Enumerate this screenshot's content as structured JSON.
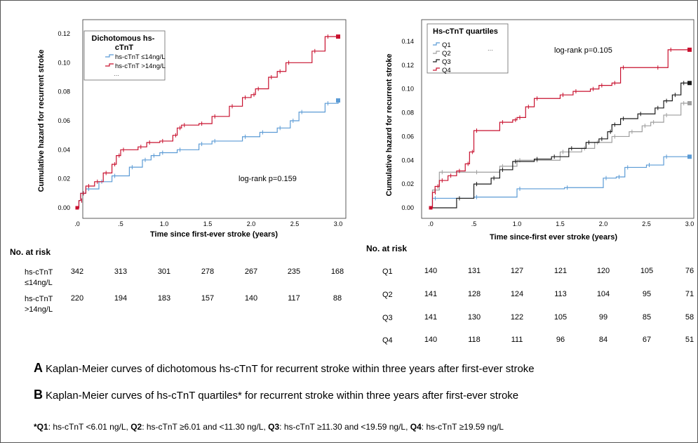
{
  "panel_a": {
    "legend_title": "Dichotomous hs-cTnT",
    "legend_items": [
      "hs-cTnT ≤14ng/L",
      "hs-cTnT >14ng/L"
    ],
    "legend_more": "...",
    "ylabel": "Cumulative hazard for recurrent  stroke",
    "xlabel": "Time since first-ever stroke (years)",
    "annotation": "log-rank p=0.159",
    "risk_title": "No. at risk",
    "risk_rows": [
      {
        "label": "hs-cTnT ≤14ng/L",
        "values": [
          "342",
          "313",
          "301",
          "278",
          "267",
          "235",
          "168"
        ]
      },
      {
        "label": "hs-cTnT >14ng/L",
        "values": [
          "220",
          "194",
          "183",
          "157",
          "140",
          "117",
          "88"
        ]
      }
    ]
  },
  "panel_b": {
    "legend_title": "Hs-cTnT quartiles",
    "legend_items": [
      "Q1",
      "Q2",
      "Q3",
      "Q4"
    ],
    "legend_more": "...",
    "ylabel": "Cumulative hazard for recurrent stroke",
    "xlabel": "Time since-first ever stroke (years)",
    "annotation": "log-rank p=0.105",
    "risk_title": "No. at risk",
    "risk_rows": [
      {
        "label": "Q1",
        "values": [
          "140",
          "131",
          "127",
          "121",
          "120",
          "105",
          "76"
        ]
      },
      {
        "label": "Q2",
        "values": [
          "141",
          "128",
          "124",
          "113",
          "104",
          "95",
          "71"
        ]
      },
      {
        "label": "Q3",
        "values": [
          "141",
          "130",
          "122",
          "105",
          "99",
          "85",
          "58"
        ]
      },
      {
        "label": "Q4",
        "values": [
          "140",
          "118",
          "111",
          "96",
          "84",
          "67",
          "51"
        ]
      }
    ]
  },
  "captions": {
    "a_letter": "A",
    "a_text": "Kaplan-Meier curves of dichotomous hs-cTnT for recurrent stroke within three years after first-ever stroke",
    "b_letter": "B",
    "b_text": "Kaplan-Meier curves of hs-cTnT quartiles* for recurrent stroke within three years after first-ever stroke"
  },
  "footnote": {
    "q1_label": "*Q1",
    "q1_text": ": hs-cTnT <6.01 ng/L, ",
    "q2_label": "Q2",
    "q2_text": ": hs-cTnT ≥6.01 and <11.30 ng/L, ",
    "q3_label": "Q3",
    "q3_text": ": hs-cTnT ≥11.30 and <19.59 ng/L, ",
    "q4_label": "Q4",
    "q4_text": ": hs-cTnT ≥19.59 ng/L"
  },
  "chart_data": [
    {
      "type": "line",
      "step": true,
      "xlabel": "Time since first-ever stroke (years)",
      "ylabel": "Cumulative hazard for recurrent  stroke",
      "xlim": [
        0,
        3
      ],
      "ylim": [
        0,
        0.12
      ],
      "x_ticks": [
        0,
        0.5,
        1,
        1.5,
        2,
        2.5,
        3
      ],
      "x_tick_labels": [
        ".0",
        ".5",
        "1.0",
        "1.5",
        "2.0",
        "2.5",
        "3.0"
      ],
      "y_ticks": [
        0,
        0.02,
        0.04,
        0.06,
        0.08,
        0.1,
        0.12
      ],
      "y_tick_labels": [
        "0.00",
        "0.02",
        "0.04",
        "0.06",
        "0.08",
        "0.10",
        "0.12"
      ],
      "annotation": "log-rank p=0.159",
      "legend_title": "Dichotomous hs-cTnT",
      "series": [
        {
          "name": "hs-cTnT ≤14ng/L",
          "color": "#5b9bd5",
          "x": [
            0,
            0.02,
            0.04,
            0.1,
            0.25,
            0.4,
            0.6,
            0.75,
            0.85,
            0.95,
            1.15,
            1.4,
            1.55,
            1.9,
            2.1,
            2.3,
            2.45,
            2.55,
            2.85,
            3.0
          ],
          "y": [
            0,
            0.005,
            0.01,
            0.013,
            0.018,
            0.022,
            0.028,
            0.033,
            0.036,
            0.038,
            0.04,
            0.044,
            0.046,
            0.049,
            0.052,
            0.055,
            0.06,
            0.066,
            0.072,
            0.074
          ]
        },
        {
          "name": "hs-cTnT >14ng/L",
          "color": "#c8102e",
          "x": [
            0,
            0.02,
            0.04,
            0.1,
            0.2,
            0.3,
            0.4,
            0.45,
            0.5,
            0.7,
            0.8,
            0.95,
            1.1,
            1.15,
            1.2,
            1.4,
            1.55,
            1.75,
            1.9,
            2.0,
            2.05,
            2.2,
            2.3,
            2.4,
            2.7,
            2.85,
            3.0
          ],
          "y": [
            0,
            0.005,
            0.01,
            0.015,
            0.018,
            0.024,
            0.03,
            0.036,
            0.04,
            0.042,
            0.045,
            0.046,
            0.05,
            0.055,
            0.057,
            0.058,
            0.063,
            0.07,
            0.076,
            0.078,
            0.082,
            0.09,
            0.094,
            0.1,
            0.108,
            0.118,
            0.118
          ]
        }
      ]
    },
    {
      "type": "line",
      "step": true,
      "xlabel": "Time since-first ever stroke (years)",
      "ylabel": "Cumulative hazard for recurrent stroke",
      "xlim": [
        0,
        3
      ],
      "ylim": [
        0,
        0.14
      ],
      "x_ticks": [
        0,
        0.5,
        1,
        1.5,
        2,
        2.5,
        3
      ],
      "x_tick_labels": [
        ".0",
        ".5",
        "1.0",
        "1.5",
        "2.0",
        "2.5",
        "3.0"
      ],
      "y_ticks": [
        0,
        0.02,
        0.04,
        0.06,
        0.08,
        0.1,
        0.12,
        0.14
      ],
      "y_tick_labels": [
        "0.00",
        "0.02",
        "0.04",
        "0.06",
        "0.08",
        "0.10",
        "0.12",
        "0.14"
      ],
      "annotation": "log-rank p=0.105",
      "legend_title": "Hs-cTnT quartiles",
      "series": [
        {
          "name": "Q1",
          "color": "#5b9bd5",
          "x": [
            0,
            0.02,
            0.5,
            1.0,
            1.55,
            2.0,
            2.15,
            2.25,
            2.5,
            2.7,
            3.0
          ],
          "y": [
            0,
            0.008,
            0.009,
            0.016,
            0.017,
            0.025,
            0.026,
            0.034,
            0.036,
            0.043,
            0.043
          ]
        },
        {
          "name": "Q2",
          "color": "#9e9e9e",
          "x": [
            0,
            0.02,
            0.1,
            0.5,
            0.8,
            1.0,
            1.2,
            1.5,
            1.75,
            1.9,
            2.1,
            2.3,
            2.45,
            2.55,
            2.7,
            2.9,
            3.0
          ],
          "y": [
            0,
            0.015,
            0.03,
            0.03,
            0.035,
            0.04,
            0.04,
            0.047,
            0.05,
            0.055,
            0.06,
            0.064,
            0.069,
            0.072,
            0.078,
            0.088,
            0.088
          ]
        },
        {
          "name": "Q3",
          "color": "#1a1a1a",
          "x": [
            0,
            0.3,
            0.5,
            0.7,
            0.8,
            0.95,
            1.2,
            1.4,
            1.6,
            1.8,
            1.95,
            2.05,
            2.1,
            2.2,
            2.4,
            2.6,
            2.7,
            2.8,
            2.9,
            3.0
          ],
          "y": [
            0,
            0.008,
            0.02,
            0.025,
            0.032,
            0.039,
            0.041,
            0.043,
            0.05,
            0.055,
            0.058,
            0.064,
            0.07,
            0.075,
            0.079,
            0.084,
            0.09,
            0.095,
            0.105,
            0.105
          ]
        },
        {
          "name": "Q4",
          "color": "#c8102e",
          "x": [
            0,
            0.02,
            0.05,
            0.1,
            0.2,
            0.3,
            0.4,
            0.45,
            0.5,
            0.8,
            0.95,
            1.0,
            1.1,
            1.2,
            1.5,
            1.65,
            1.85,
            1.95,
            2.1,
            2.2,
            2.6,
            2.75,
            3.0
          ],
          "y": [
            0,
            0.013,
            0.018,
            0.023,
            0.027,
            0.031,
            0.037,
            0.047,
            0.065,
            0.072,
            0.074,
            0.076,
            0.085,
            0.092,
            0.095,
            0.098,
            0.1,
            0.103,
            0.105,
            0.118,
            0.118,
            0.133,
            0.133
          ]
        }
      ]
    }
  ]
}
